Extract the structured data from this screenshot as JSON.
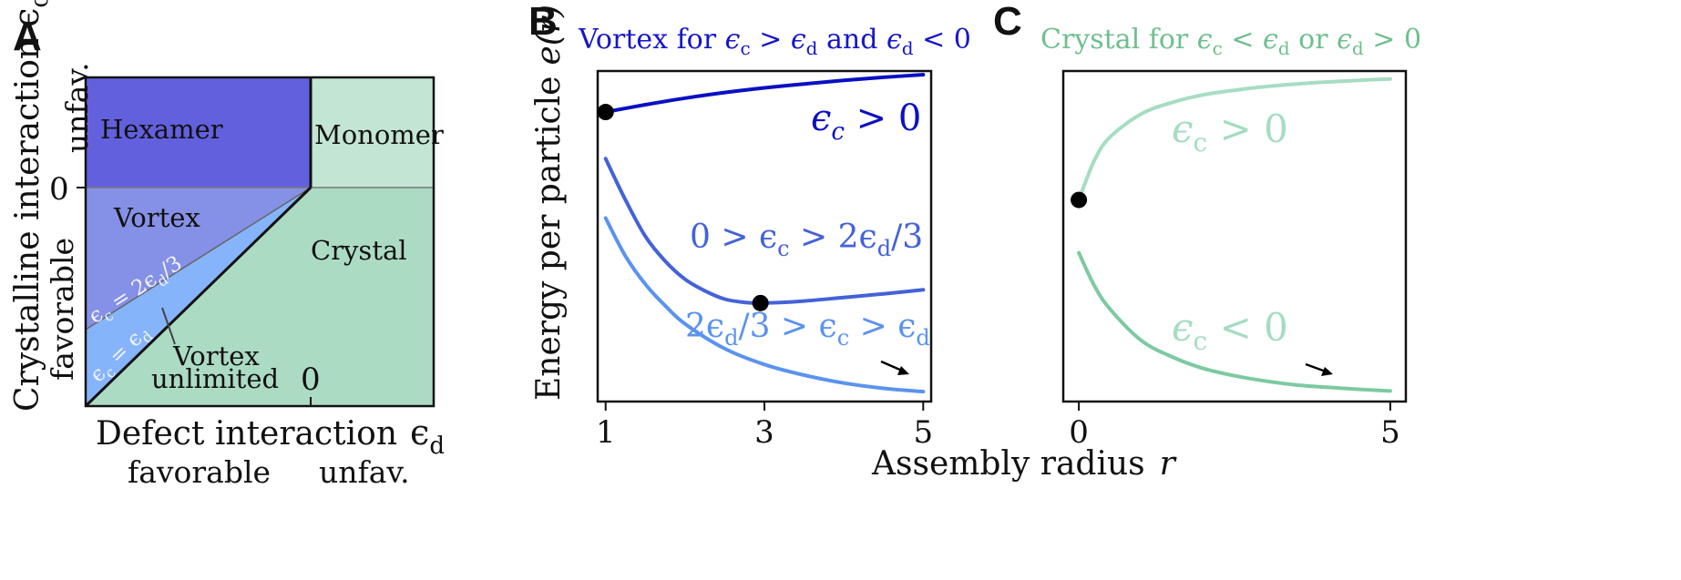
{
  "colors": {
    "hexamer": "#6360de",
    "vortex": "#8591e6",
    "vortex_unlimited": "#86b4fa",
    "monomer": "#c3e6d4",
    "crystal": "#acdbc4",
    "curve_pos": "#0a10c2",
    "curve_mid": "#4462d8",
    "curve_low": "#5b93ee",
    "crystal_curve_light": "#a6dcc3",
    "crystal_curve": "#7ccaa2",
    "title_B": "#1616c8",
    "title_C": "#6fbf8f"
  },
  "chart_data": [
    {
      "panel": "A",
      "type": "phase-diagram",
      "letter": "A",
      "xlabel": "Defect  interaction",
      "xlabel_symbol": "ϵ",
      "xlabel_sub": "d",
      "xlabel_left": "favorable",
      "xlabel_right": "unfav.",
      "ylabel": "Crystalline interaction",
      "ylabel_symbol": "ϵ",
      "ylabel_sub": "c",
      "ylabel_top": "unfav.",
      "ylabel_bottom": "favorable",
      "xlim": [
        -3,
        1.3
      ],
      "ylim": [
        -3,
        1.3
      ],
      "x_ticks": [
        {
          "value": 0,
          "label": "0"
        }
      ],
      "y_ticks": [
        {
          "value": 0,
          "label": "0"
        }
      ],
      "regions": [
        {
          "name": "Hexamer",
          "label": "Hexamer"
        },
        {
          "name": "Monomer",
          "label": "Monomer"
        },
        {
          "name": "Vortex",
          "label": "Vortex"
        },
        {
          "name": "Crystal",
          "label": "Crystal"
        },
        {
          "name": "Vortex unlimited",
          "label_lines": [
            "Vortex",
            "unlimited"
          ]
        }
      ],
      "boundaries": [
        {
          "label": "ϵc = 2ϵd/3",
          "text_main": "ϵ",
          "text_sub": "c",
          "text_rest": " = 2ϵ",
          "text_sub2": "d",
          "text_end": "/3",
          "slope": 0.6667
        },
        {
          "label": "ϵc = ϵd",
          "text_main": "ϵ",
          "text_sub": "c",
          "text_rest": " = ϵ",
          "text_sub2": "d",
          "text_end": "",
          "slope": 1
        }
      ]
    },
    {
      "panel": "B",
      "type": "line",
      "letter": "B",
      "title_parts": [
        "Vortex for ",
        "ϵ",
        "c",
        " > ",
        "ϵ",
        "d",
        " and ",
        "ϵ",
        "d",
        " < 0"
      ],
      "ylabel": "Energy per particle",
      "ylabel_func": "e(r)",
      "xlim": [
        0.9,
        5.1
      ],
      "ylim": [
        0,
        1
      ],
      "x_ticks": [
        1,
        3,
        5
      ],
      "series": [
        {
          "name": "ϵc > 0",
          "label_main": "ϵ",
          "label_sub": "c",
          "label_rest": " > 0",
          "x": [
            1,
            1.5,
            2,
            2.5,
            3,
            3.5,
            4,
            4.5,
            5
          ],
          "y": [
            0.876,
            0.898,
            0.918,
            0.935,
            0.949,
            0.961,
            0.972,
            0.981,
            0.989
          ]
        },
        {
          "name": "0 > ϵc > 2ϵd/3",
          "label_main": "0 > ϵ",
          "label_sub": "c",
          "label_rest": " > 2ϵ",
          "label_sub2": "d",
          "label_end": "/3",
          "x": [
            1,
            1.25,
            1.5,
            1.75,
            2,
            2.25,
            2.5,
            2.75,
            3,
            3.5,
            4,
            4.5,
            5
          ],
          "y": [
            0.735,
            0.61,
            0.5,
            0.425,
            0.37,
            0.335,
            0.31,
            0.3,
            0.298,
            0.304,
            0.315,
            0.326,
            0.338
          ]
        },
        {
          "name": "2ϵd/3 > ϵc > ϵd",
          "label_main": "2ϵ",
          "label_sub": "d",
          "label_rest": "/3 > ϵ",
          "label_sub2": "c",
          "label_end": " > ϵ",
          "label_sub3": "d",
          "x": [
            1,
            1.25,
            1.5,
            1.75,
            2,
            2.5,
            3,
            3.5,
            4,
            4.5,
            5
          ],
          "y": [
            0.555,
            0.44,
            0.355,
            0.29,
            0.235,
            0.16,
            0.112,
            0.08,
            0.056,
            0.04,
            0.03
          ]
        }
      ],
      "markers": [
        {
          "x": 1,
          "y": 0.876
        },
        {
          "x": 2.95,
          "y": 0.298
        }
      ]
    },
    {
      "panel": "C",
      "type": "line",
      "letter": "C",
      "title_parts": [
        "Crystal for ",
        "ϵ",
        "c",
        " < ",
        "ϵ",
        "d",
        " or ",
        "ϵ",
        "d",
        " > 0"
      ],
      "xlabel": "Assembly radius",
      "xlabel_symbol": "r",
      "xlim": [
        -0.25,
        5.25
      ],
      "ylim": [
        0,
        1
      ],
      "x_ticks": [
        0,
        5
      ],
      "series": [
        {
          "name": "ϵc > 0",
          "label_main": "ϵ",
          "label_sub": "c",
          "label_rest": " > 0",
          "x": [
            0,
            0.25,
            0.5,
            1,
            1.5,
            2,
            2.5,
            3,
            3.5,
            4,
            4.5,
            5
          ],
          "y": [
            0.61,
            0.73,
            0.8,
            0.87,
            0.905,
            0.928,
            0.942,
            0.953,
            0.961,
            0.967,
            0.972,
            0.976
          ]
        },
        {
          "name": "ϵc < 0",
          "label_main": "ϵ",
          "label_sub": "c",
          "label_rest": " < 0",
          "x": [
            0,
            0.25,
            0.5,
            1,
            1.5,
            2,
            2.5,
            3,
            3.5,
            4,
            4.5,
            5
          ],
          "y": [
            0.45,
            0.35,
            0.28,
            0.185,
            0.135,
            0.1,
            0.078,
            0.062,
            0.05,
            0.043,
            0.037,
            0.032
          ]
        }
      ],
      "markers": [
        {
          "x": 0,
          "y": 0.61
        }
      ]
    }
  ]
}
